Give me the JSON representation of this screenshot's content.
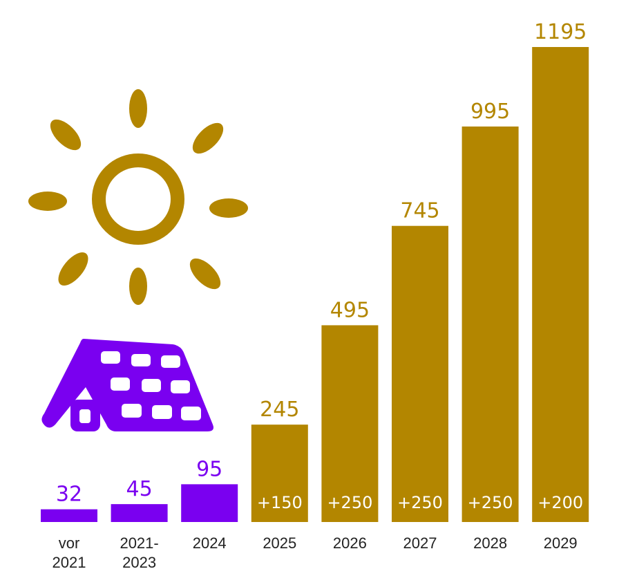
{
  "chart_data": {
    "type": "bar",
    "categories": [
      [
        "vor",
        "2021"
      ],
      [
        "2021-",
        "2023"
      ],
      [
        "2024"
      ],
      [
        "2025"
      ],
      [
        "2026"
      ],
      [
        "2027"
      ],
      [
        "2028"
      ],
      [
        "2029"
      ]
    ],
    "values": [
      32,
      45,
      95,
      245,
      495,
      745,
      995,
      1195
    ],
    "value_labels": [
      "32",
      "45",
      "95",
      "245",
      "495",
      "745",
      "995",
      "1195"
    ],
    "increments": [
      "",
      "",
      "",
      "+150",
      "+250",
      "+250",
      "+250",
      "+200"
    ],
    "bar_colors": [
      "#7a00f0",
      "#7a00f0",
      "#7a00f0",
      "#b38600",
      "#b38600",
      "#b38600",
      "#b38600",
      "#b38600"
    ],
    "ylim": [
      0,
      1195
    ],
    "grid": false,
    "legend": "none"
  },
  "illustrations": {
    "sun_icon_color": "#b38600",
    "solar_roof_icon_color": "#7a00f0"
  }
}
